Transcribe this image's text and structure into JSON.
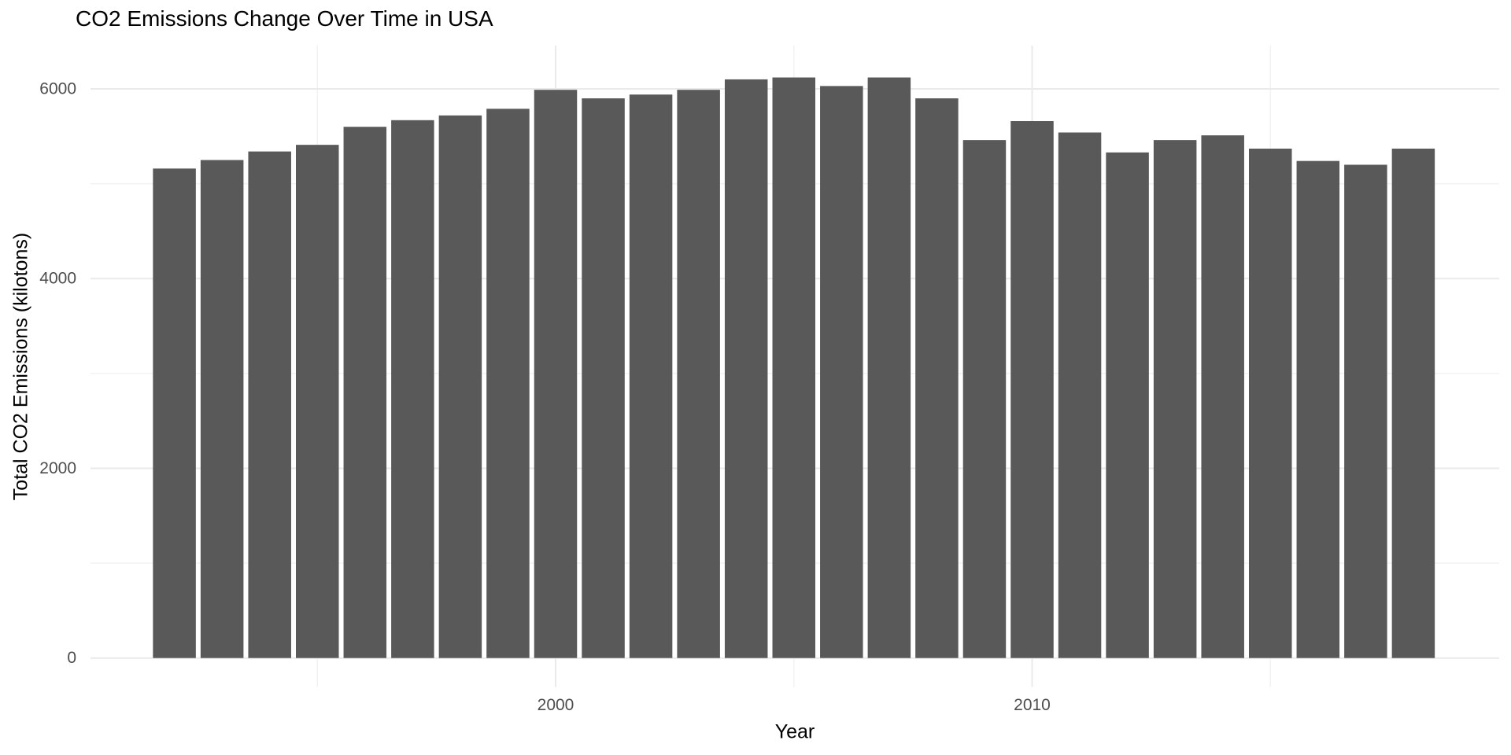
{
  "chart_data": {
    "type": "bar",
    "title": "CO2 Emissions Change Over Time in USA",
    "xlabel": "Year",
    "ylabel": "Total CO2 Emissions (kilotons)",
    "categories": [
      1992,
      1993,
      1994,
      1995,
      1996,
      1997,
      1998,
      1999,
      2000,
      2001,
      2002,
      2003,
      2004,
      2005,
      2006,
      2007,
      2008,
      2009,
      2010,
      2011,
      2012,
      2013,
      2014,
      2015,
      2016,
      2017,
      2018
    ],
    "values": [
      5160,
      5250,
      5340,
      5410,
      5600,
      5670,
      5720,
      5790,
      5990,
      5900,
      5940,
      5990,
      6100,
      6120,
      6030,
      6120,
      5900,
      5460,
      5660,
      5540,
      5330,
      5460,
      5510,
      5370,
      5240,
      5200,
      5370
    ],
    "ylim": [
      0,
      6450
    ],
    "xlim": [
      1990.2,
      2019.8
    ],
    "yticks_major": [
      0,
      2000,
      4000,
      6000
    ],
    "yticks_minor": [
      1000,
      3000,
      5000
    ],
    "xticks_major": [
      2000,
      2010
    ],
    "xticks_minor": [
      1995,
      2005,
      2015
    ],
    "grid": "on",
    "legend_position": "none",
    "bar_width_fraction": 0.9,
    "colors": {
      "bar": "#595959",
      "grid_major": "#eaeaea",
      "grid_minor": "#f2f2f2",
      "tick_label": "#4d4d4d",
      "title_text": "#000000",
      "background": "#ffffff"
    }
  }
}
